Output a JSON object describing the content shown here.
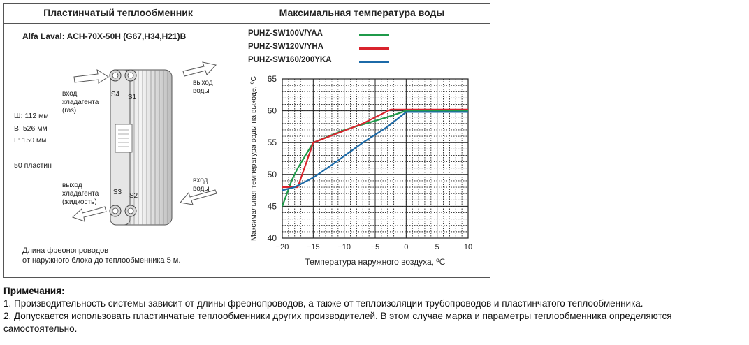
{
  "left_panel": {
    "header": "Пластинчатый теплообменник",
    "model": "Alfa Laval: ACH-70X-50H (G67,H34,H21)B",
    "specs": [
      "Ш: 112 мм",
      "В: 526 мм",
      "Г: 150 мм"
    ],
    "plates": "50 пластин",
    "port_labels": [
      "S4",
      "S1",
      "S3",
      "S2"
    ],
    "labels": {
      "refrigerant_in": [
        "вход",
        "хладагента",
        "(газ)"
      ],
      "water_out": [
        "выход",
        "воды"
      ],
      "refrigerant_out": [
        "выход",
        "хладагента",
        "(жидкость)"
      ],
      "water_in": [
        "вход",
        "воды"
      ]
    },
    "pipe_note": [
      "Длина фреонопроводов",
      "от наружного блока до теплообменника 5 м."
    ]
  },
  "right_panel": {
    "header": "Максимальная температура воды"
  },
  "chart_data": {
    "type": "line",
    "title": "",
    "xlabel": "Температура наружного воздуха, ºC",
    "ylabel": "Максимальная температура воды на выходе, ºC",
    "xlim": [
      -20,
      10
    ],
    "ylim": [
      40,
      65
    ],
    "x_ticks": [
      "−20",
      "−15",
      "−10",
      "−5",
      "0",
      "5",
      "10"
    ],
    "y_ticks": [
      "40",
      "45",
      "50",
      "55",
      "60",
      "65"
    ],
    "grid": true,
    "legend_position": "top",
    "series": [
      {
        "name": "PUHZ-SW100V/YAA",
        "color": "#1f9a4a",
        "points": [
          [
            -20,
            45
          ],
          [
            -18.5,
            49
          ],
          [
            -17.5,
            51
          ],
          [
            -15,
            55
          ],
          [
            -10,
            57
          ],
          [
            -3,
            59
          ],
          [
            0,
            60
          ],
          [
            10,
            60
          ]
        ]
      },
      {
        "name": "PUHZ-SW120V/YHA",
        "color": "#d9232d",
        "points": [
          [
            -20,
            48
          ],
          [
            -17.5,
            48
          ],
          [
            -15,
            55
          ],
          [
            -7,
            58
          ],
          [
            -2.5,
            60.2
          ],
          [
            10,
            60.2
          ]
        ]
      },
      {
        "name": "PUHZ-SW160/200YKA",
        "color": "#1c6aa8",
        "points": [
          [
            -20,
            47.5
          ],
          [
            -18,
            48
          ],
          [
            -15,
            49.5
          ],
          [
            -12,
            51.5
          ],
          [
            -7,
            55
          ],
          [
            -3,
            57.5
          ],
          [
            0,
            59.8
          ],
          [
            10,
            59.8
          ]
        ]
      }
    ]
  },
  "notes": {
    "title": "Примечания:",
    "items": [
      "1. Производительность системы зависит от длины фреонопроводов, а также от теплоизоляции трубопроводов и пластинчатого теплообменника.",
      "2. Допускается использовать пластинчатые теплообменники других производителей. В этом случае марка и параметры теплообменника определяются самостоятельно."
    ]
  }
}
